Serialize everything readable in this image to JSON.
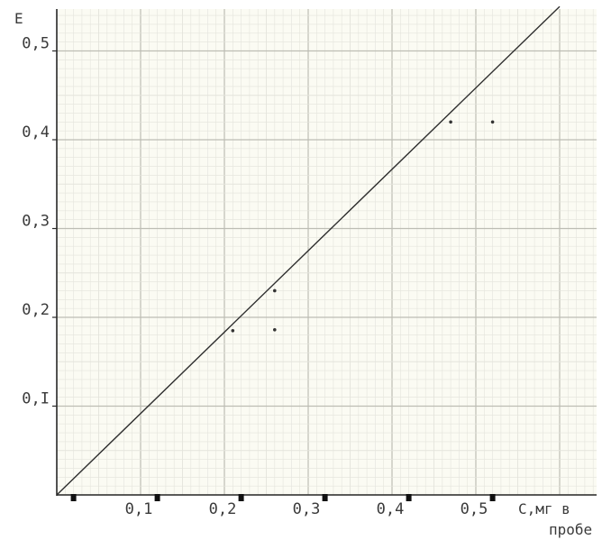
{
  "chart_data": {
    "type": "line",
    "title": "",
    "ylabel": "E",
    "xlabel_line1": "С,мг в",
    "xlabel_line2": "пробе",
    "xlim": [
      0,
      0.66
    ],
    "ylim": [
      0,
      0.55
    ],
    "x_ticks": [
      0.1,
      0.2,
      0.3,
      0.4,
      0.5
    ],
    "x_tick_labels": [
      "0,1",
      "0,2",
      "0,3",
      "0,4",
      "0,5"
    ],
    "x_tick_markers": [
      0.02,
      0.12,
      0.22,
      0.32,
      0.42,
      0.52
    ],
    "y_ticks": [
      0.1,
      0.2,
      0.3,
      0.4,
      0.5
    ],
    "y_tick_labels": [
      "0,I",
      "0,2",
      "0,3",
      "0,4",
      "0,5"
    ],
    "grid": true,
    "series": [
      {
        "type": "line",
        "x": [
          0,
          0.6
        ],
        "y": [
          0,
          0.55
        ]
      },
      {
        "type": "scatter",
        "x": [
          0.21,
          0.26,
          0.26,
          0.47,
          0.52
        ],
        "y": [
          0.185,
          0.23,
          0.186,
          0.42,
          0.42
        ]
      }
    ],
    "colors": {
      "paper": "#fbfbf3",
      "minor_grid": "#e4e4dc",
      "major_grid": "#bdbdb4",
      "line": "#2e2e2e",
      "axis": "#2a2a2a"
    }
  }
}
